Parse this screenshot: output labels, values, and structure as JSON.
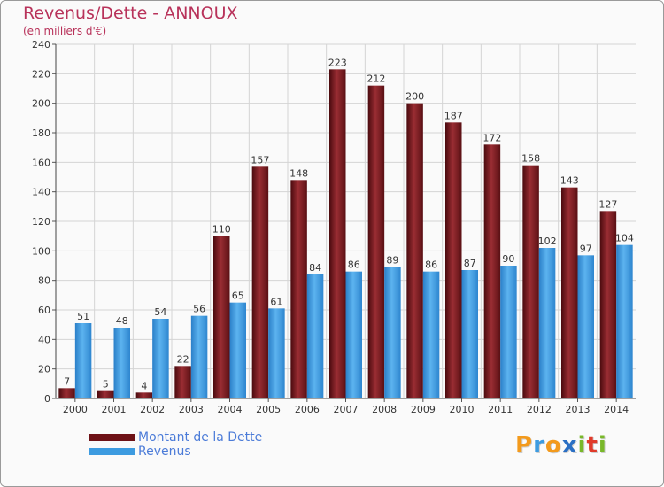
{
  "title": "Revenus/Dette - ANNOUX",
  "subtitle": "(en milliers d'€)",
  "chart_data": {
    "type": "bar",
    "title": "Revenus/Dette - ANNOUX",
    "ylabel": "(en milliers d'€)",
    "xlabel": "",
    "ylim": [
      0,
      240
    ],
    "yticks": [
      0,
      20,
      40,
      60,
      80,
      100,
      120,
      140,
      160,
      180,
      200,
      220,
      240
    ],
    "grid": true,
    "categories": [
      "2000",
      "2001",
      "2002",
      "2003",
      "2004",
      "2005",
      "2006",
      "2007",
      "2008",
      "2009",
      "2010",
      "2011",
      "2012",
      "2013",
      "2014"
    ],
    "series": [
      {
        "name": "Montant de la Dette",
        "color": "#7a1b1f",
        "values": [
          7,
          5,
          4,
          22,
          110,
          157,
          148,
          223,
          212,
          200,
          187,
          172,
          158,
          143,
          127
        ]
      },
      {
        "name": "Revenus",
        "color": "#3d9be0",
        "values": [
          51,
          48,
          54,
          56,
          65,
          61,
          84,
          86,
          89,
          86,
          87,
          90,
          102,
          97,
          104
        ]
      }
    ]
  },
  "legend": {
    "items": [
      {
        "label": "Montant de la Dette",
        "color": "#6e1216"
      },
      {
        "label": "Revenus",
        "color": "#3d9be0"
      }
    ]
  },
  "logo": {
    "letters": [
      {
        "char": "P",
        "color": "#f39a1c"
      },
      {
        "char": "r",
        "color": "#3d9be0"
      },
      {
        "char": "o",
        "color": "#f39a1c"
      },
      {
        "char": "x",
        "color": "#2a6fc4"
      },
      {
        "char": "i",
        "color": "#79b82a"
      },
      {
        "char": "t",
        "color": "#e03a2a"
      },
      {
        "char": "i",
        "color": "#79b82a"
      }
    ]
  }
}
